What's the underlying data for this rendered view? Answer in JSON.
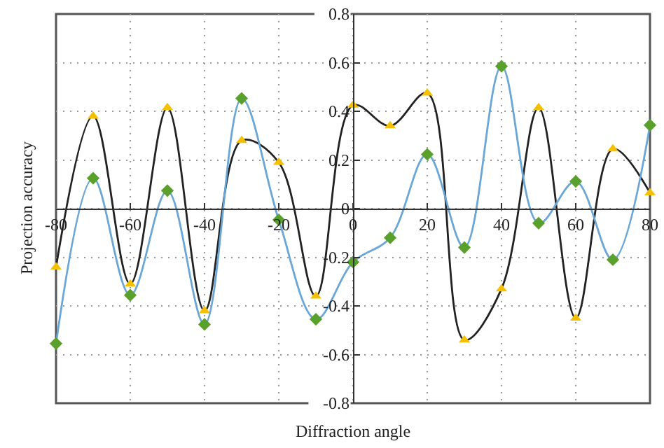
{
  "chart_data": {
    "type": "line",
    "xlabel": "Diffraction angle",
    "ylabel": "Projection accuracy",
    "x": [
      -80,
      -70,
      -60,
      -50,
      -40,
      -30,
      -20,
      -10,
      0,
      10,
      20,
      30,
      40,
      50,
      60,
      70,
      80
    ],
    "series": [
      {
        "color": "#222222",
        "marker": "triangle",
        "colors": [
          "#f5c000",
          "#f5c000",
          "#f5c000",
          "#f5c000",
          "#f5c000",
          "#f5c000",
          "#f5c000",
          "#f5c000",
          "#f5c000",
          "#f5c000",
          "#f5c000",
          "#f5c000",
          "#f5c000",
          "#f5c000",
          "#f5c000",
          "#f5c000",
          "#f5c000"
        ],
        "values": [
          -0.24,
          0.38,
          -0.31,
          0.415,
          -0.42,
          0.28,
          0.19,
          -0.36,
          0.425,
          0.34,
          0.475,
          -0.54,
          -0.33,
          0.415,
          -0.45,
          0.245,
          0.065
        ]
      },
      {
        "color": "#6aa6d6",
        "marker": "diamond",
        "colors": [
          "#5aa02c",
          "#5aa02c",
          "#5aa02c",
          "#5aa02c",
          "#5aa02c",
          "#5aa02c",
          "#5aa02c",
          "#5aa02c",
          "#5aa02c",
          "#5aa02c",
          "#5aa02c",
          "#5aa02c",
          "#5aa02c",
          "#5aa02c",
          "#5aa02c",
          "#5aa02c",
          "#5aa02c"
        ],
        "values": [
          -0.555,
          0.125,
          -0.356,
          0.074,
          -0.476,
          0.453,
          -0.046,
          -0.455,
          -0.22,
          -0.12,
          0.223,
          -0.16,
          0.585,
          -0.06,
          0.112,
          -0.21,
          0.343
        ]
      }
    ],
    "xlim": [
      -80,
      80
    ],
    "xticks": [
      -80,
      -60,
      -40,
      -20,
      0,
      20,
      40,
      60,
      80
    ],
    "ylim": [
      -0.8,
      0.8
    ],
    "yticks": [
      -0.8,
      -0.6,
      -0.4,
      -0.2,
      0,
      0.2,
      0.4,
      0.6,
      0.8
    ],
    "grid": true,
    "line_style": "solid"
  }
}
